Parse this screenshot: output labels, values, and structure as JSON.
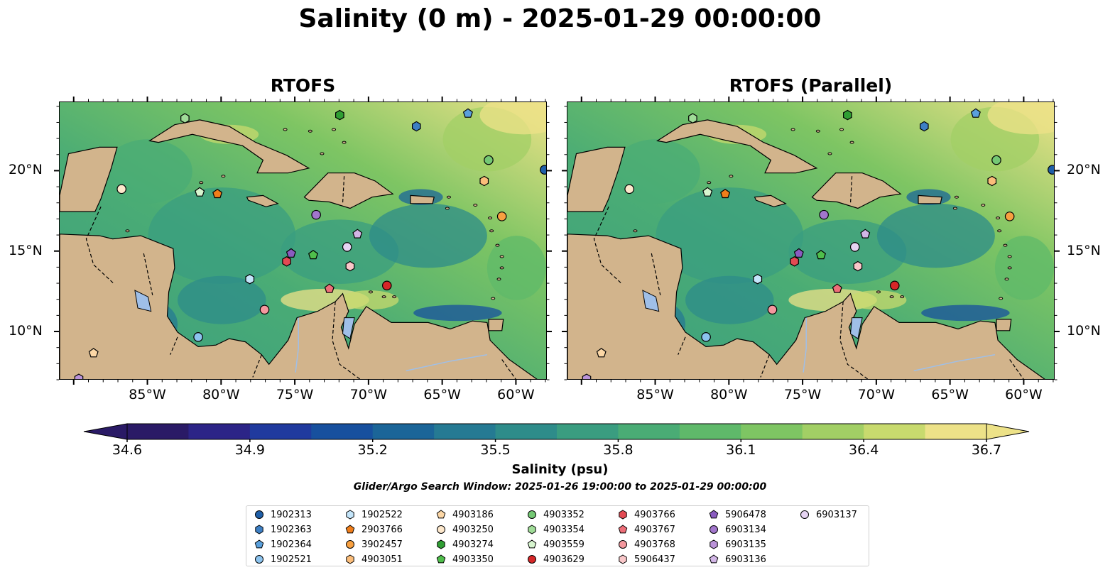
{
  "title": "Salinity (0 m) - 2025-01-29 00:00:00",
  "panels": [
    {
      "title": "RTOFS"
    },
    {
      "title": "RTOFS (Parallel)"
    }
  ],
  "lon_ticks": [
    "85°W",
    "80°W",
    "75°W",
    "70°W",
    "65°W",
    "60°W"
  ],
  "lat_ticks": [
    "20°N",
    "15°N",
    "10°N"
  ],
  "colorbar": {
    "label": "Salinity (psu)",
    "ticks": [
      "34.6",
      "34.9",
      "35.2",
      "35.5",
      "35.8",
      "36.1",
      "36.4",
      "36.7"
    ],
    "range": [
      34.6,
      36.7
    ],
    "extend": "both",
    "colormap": "haline"
  },
  "search_window": "Glider/Argo Search Window: 2025-01-26 19:00:00 to 2025-01-29 00:00:00",
  "colors": {
    "land": "#d2b48c",
    "lakes": "#9fbfe8",
    "pacific": "#2a1a66"
  },
  "platforms": [
    {
      "id": "1902313",
      "marker": "circle",
      "color": "#1f5fa8",
      "lon": -58.1,
      "lat": 20.1
    },
    {
      "id": "1902363",
      "marker": "hexagon",
      "color": "#3d7fc4",
      "lon": -66.8,
      "lat": 22.8
    },
    {
      "id": "1902364",
      "marker": "pentagon",
      "color": "#5aa0dc",
      "lon": -63.3,
      "lat": 23.6
    },
    {
      "id": "1902521",
      "marker": "circle",
      "color": "#8cc3ee",
      "lon": -81.6,
      "lat": 9.7
    },
    {
      "id": "1902522",
      "marker": "hexagon",
      "color": "#c4e5fa",
      "lon": -78.1,
      "lat": 13.3
    },
    {
      "id": "2903766",
      "marker": "pentagon",
      "color": "#f07e1a",
      "lon": -80.3,
      "lat": 18.6
    },
    {
      "id": "3902457",
      "marker": "circle",
      "color": "#f8a040",
      "lon": -61.0,
      "lat": 17.2
    },
    {
      "id": "4903051",
      "marker": "hexagon",
      "color": "#fbbd7a",
      "lon": -62.2,
      "lat": 19.4
    },
    {
      "id": "4903186",
      "marker": "pentagon",
      "color": "#fcd7a6",
      "lon": -88.7,
      "lat": 8.7
    },
    {
      "id": "4903250",
      "marker": "circle",
      "color": "#fde8cc",
      "lon": -86.8,
      "lat": 18.9
    },
    {
      "id": "4903274",
      "marker": "hexagon",
      "color": "#2f9e33",
      "lon": -72.0,
      "lat": 23.5
    },
    {
      "id": "4903350",
      "marker": "pentagon",
      "color": "#4fbe4b",
      "lon": -73.8,
      "lat": 14.8
    },
    {
      "id": "4903352",
      "marker": "circle",
      "color": "#74c874",
      "lon": -61.9,
      "lat": 20.7
    },
    {
      "id": "4903354",
      "marker": "hexagon",
      "color": "#a0dc98",
      "lon": -82.5,
      "lat": 23.3
    },
    {
      "id": "4903559",
      "marker": "pentagon",
      "color": "#d7f5cf",
      "lon": -81.5,
      "lat": 18.7
    },
    {
      "id": "4903629",
      "marker": "circle",
      "color": "#d62728",
      "lon": -68.8,
      "lat": 12.9
    },
    {
      "id": "4903766",
      "marker": "hexagon",
      "color": "#e34a53",
      "lon": -75.6,
      "lat": 14.4
    },
    {
      "id": "4903767",
      "marker": "pentagon",
      "color": "#ee6e78",
      "lon": -72.7,
      "lat": 12.7
    },
    {
      "id": "4903768",
      "marker": "circle",
      "color": "#f4989e",
      "lon": -77.1,
      "lat": 11.4
    },
    {
      "id": "5906437",
      "marker": "hexagon",
      "color": "#f9c7c9",
      "lon": -71.3,
      "lat": 14.1
    },
    {
      "id": "5906478",
      "marker": "pentagon",
      "color": "#8a5cc0",
      "lon": -75.3,
      "lat": 14.9
    },
    {
      "id": "6903134",
      "marker": "circle",
      "color": "#a276cc",
      "lon": -73.6,
      "lat": 17.3
    },
    {
      "id": "6903135",
      "marker": "hexagon",
      "color": "#bb93d9",
      "lon": -89.7,
      "lat": 7.1
    },
    {
      "id": "6903136",
      "marker": "pentagon",
      "color": "#d2b6e6",
      "lon": -70.8,
      "lat": 16.1
    },
    {
      "id": "6903137",
      "marker": "circle",
      "color": "#e6d4f2",
      "lon": -71.5,
      "lat": 15.3
    }
  ]
}
